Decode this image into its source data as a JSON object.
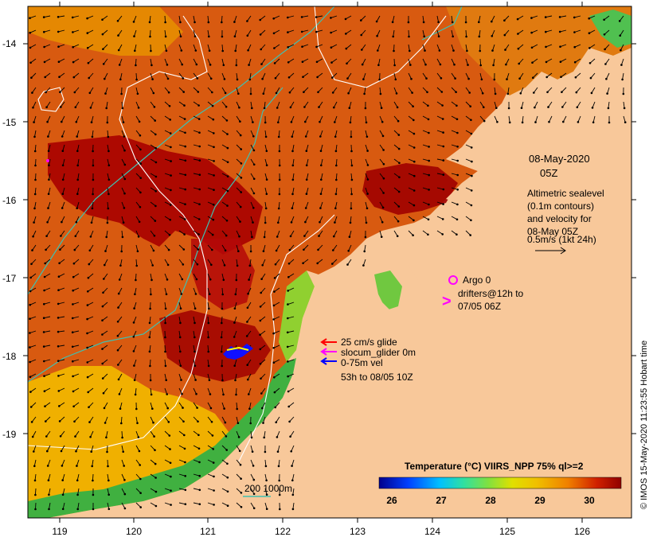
{
  "axes": {
    "lon_ticks": [
      "119",
      "120",
      "121",
      "122",
      "123",
      "124",
      "125",
      "126"
    ],
    "lat_ticks": [
      "-14",
      "-15",
      "-16",
      "-17",
      "-18",
      "-19"
    ]
  },
  "header": {
    "date": "08-May-2020",
    "time": "05Z"
  },
  "altimetry": {
    "line1": "Altimetric sealevel",
    "line2": "(0.1m contours)",
    "line3": "and velocity for",
    "line4": "08-May 05Z",
    "line5": "0.5m/s (1kt 24h)"
  },
  "argo": {
    "label": "Argo 0",
    "drifters_line1": "drifters@12h to",
    "drifters_line2": "07/05 06Z",
    "symbol": ">"
  },
  "glider": {
    "line1": "25 cm/s glide",
    "line2": "slocum_glider 0m",
    "line3": "0-75m vel",
    "line4": "53h to 08/05 10Z"
  },
  "bathymetry": {
    "label": "200  1000m"
  },
  "colorbar": {
    "title": "Temperature (°C) VIIRS_NPP 75% ql>=2",
    "ticks": [
      "26",
      "27",
      "28",
      "29",
      "30"
    ]
  },
  "credit": "© IMOS 15-May-2020 11:23:55 Hobart time",
  "colors": {
    "land": "#f8c89a",
    "sea_warm": "#c83010",
    "sea_hot": "#a00000",
    "sea_mid": "#e07000",
    "sea_cool": "#f0c000",
    "sea_green": "#60c030",
    "bathy": "#40c0b0",
    "glider_blue": "#0000ff",
    "argo_magenta": "#ff00ff"
  }
}
